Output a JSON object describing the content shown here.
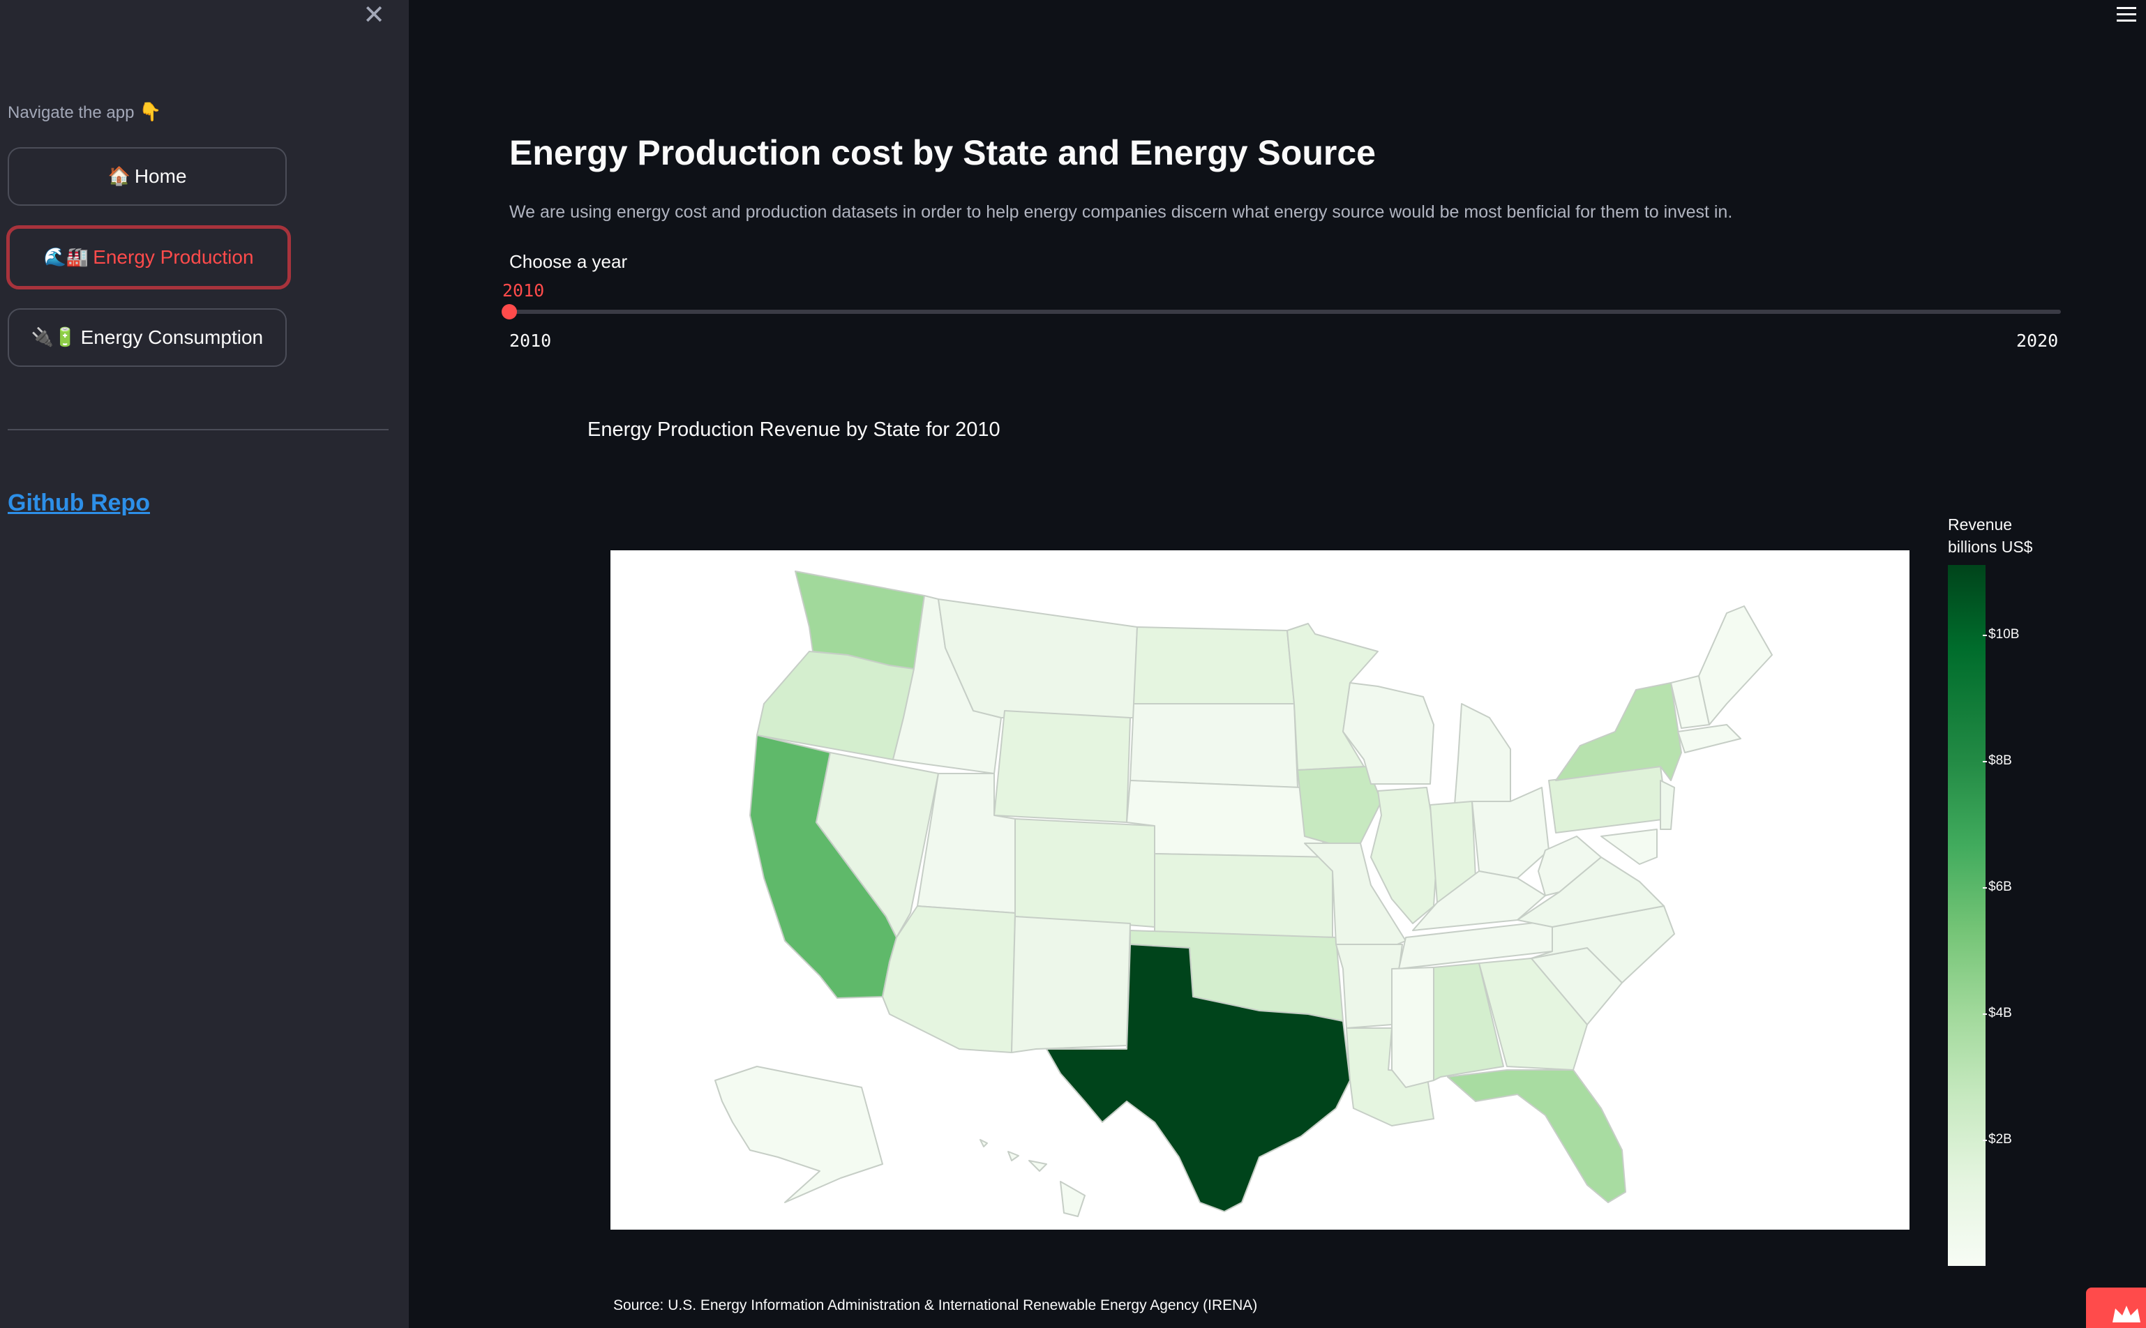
{
  "sidebar": {
    "nav_caption": "Navigate the app",
    "nav_caption_emoji": "👇",
    "items": [
      {
        "emoji": "🏠",
        "label": "Home",
        "active": false
      },
      {
        "emoji": "🌊🏭",
        "label": "Energy Production",
        "active": true
      },
      {
        "emoji": "🔌🔋",
        "label": "Energy Consumption",
        "active": false
      }
    ],
    "github_link": "Github Repo"
  },
  "main": {
    "title": "Energy Production cost by State and Energy Source",
    "description": "We are using energy cost and production datasets in order to help energy companies discern what energy source would be most benficial for them to invest in.",
    "slider": {
      "label": "Choose a year",
      "value": "2010",
      "min": "2010",
      "max": "2020"
    },
    "source": "Source: U.S. Energy Information Administration & International Renewable Energy Agency (IRENA)"
  },
  "chart_data": {
    "type": "choropleth",
    "title": "Energy Production Revenue by State for 2010",
    "colorbar_title": [
      "Revenue",
      "billions US$"
    ],
    "colorbar_ticks": [
      "$10B",
      "$8B",
      "$6B",
      "$4B",
      "$2B"
    ],
    "colorscale": "Greens",
    "approx_values_billions": {
      "TX": 11.0,
      "CA": 6.0,
      "WA": 3.8,
      "FL": 3.8,
      "NY": 3.6,
      "PA": 2.8,
      "IA": 2.6,
      "IL": 2.2,
      "OR": 2.0,
      "AL": 2.0,
      "OK": 1.8,
      "LA": 1.8,
      "GA": 1.6,
      "MN": 1.6
    },
    "colors": {
      "low": "#f7fcf5",
      "high": "#00441b"
    }
  }
}
